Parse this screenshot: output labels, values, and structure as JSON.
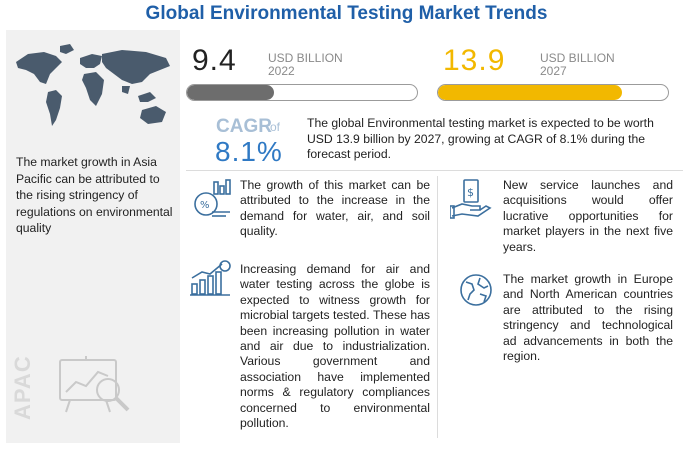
{
  "title": "Global Environmental Testing Market Trends",
  "left_panel": {
    "text": "The market growth in Asia Pacific can be attributed to the rising stringency of regulations on environmental quality",
    "region_label": "APAC",
    "map_icon": "world-map-icon",
    "region_icon": "presentation-analysis-icon"
  },
  "metrics": {
    "value_2022": "9.4",
    "unit_2022": "USD BILLION",
    "year_2022": "2022",
    "fill_2022": 0.38,
    "value_2027": "13.9",
    "unit_2027": "USD BILLION",
    "year_2027": "2027",
    "fill_2027": 0.8,
    "gray_color": "#6d6d6d",
    "gold_color": "#f2b800"
  },
  "cagr": {
    "label": "CAGR",
    "of": "of",
    "value": "8.1%",
    "description": "The global Environmental testing market is expected to be worth USD 13.9 billion by 2027, growing at CAGR of 8.1% during the forecast period."
  },
  "points": [
    {
      "icon": "analytics-icon",
      "text": "The growth of this market can be attributed to the increase in the demand for water, air, and soil quality."
    },
    {
      "icon": "growth-chart-icon",
      "text": "Increasing demand for air and water testing across the globe is expected to witness growth for microbial targets tested. These has been increasing pollution in water and air due to industrialization. Various government and association have implemented norms & regulatory compliances concerned to environmental pollution."
    },
    {
      "icon": "money-hand-icon",
      "text": "New service launches and acquisitions would offer lucrative opportunities for market players in the next five years."
    },
    {
      "icon": "globe-icon",
      "text": "The market growth in Europe and North American countries are attributed to the rising stringency and technological ad advancements in both the region."
    }
  ]
}
